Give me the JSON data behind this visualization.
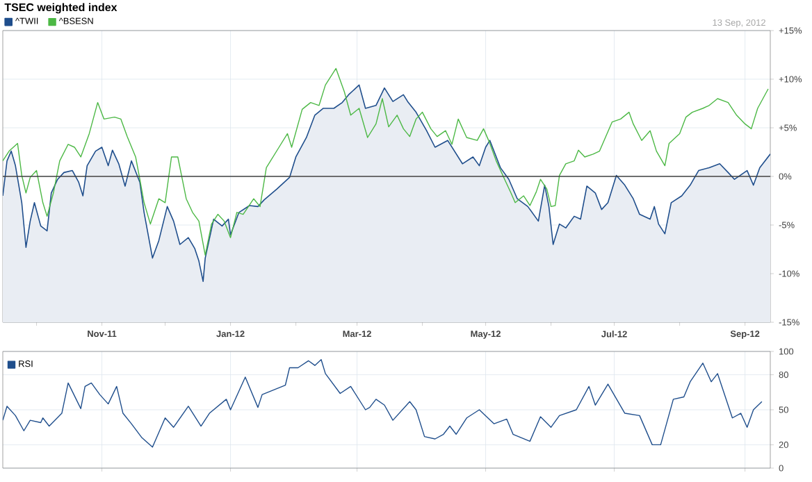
{
  "chart_data": [
    {
      "type": "line",
      "title": "TSEC weighted index",
      "annotations": [
        "13 Sep, 2012"
      ],
      "xlim": [
        "2011-09-15",
        "2012-09-13"
      ],
      "xticks": [
        {
          "value": "2011-10-01",
          "label": null
        },
        {
          "value": "2011-11-01",
          "label": "Nov-11"
        },
        {
          "value": "2011-12-01",
          "label": null
        },
        {
          "value": "2012-01-01",
          "label": "Jan-12"
        },
        {
          "value": "2012-02-01",
          "label": null
        },
        {
          "value": "2012-03-01",
          "label": "Mar-12"
        },
        {
          "value": "2012-04-01",
          "label": null
        },
        {
          "value": "2012-05-01",
          "label": "May-12"
        },
        {
          "value": "2012-06-01",
          "label": null
        },
        {
          "value": "2012-07-01",
          "label": "Jul-12"
        },
        {
          "value": "2012-08-01",
          "label": null
        },
        {
          "value": "2012-09-01",
          "label": "Sep-12"
        }
      ],
      "ylim": [
        -15,
        15
      ],
      "yticks": [
        {
          "value": -15,
          "label": "-15%"
        },
        {
          "value": -10,
          "label": "-10%"
        },
        {
          "value": -5,
          "label": "-5%"
        },
        {
          "value": 0,
          "label": "0%"
        },
        {
          "value": 5,
          "label": "+5%"
        },
        {
          "value": 10,
          "label": "+10%"
        },
        {
          "value": 15,
          "label": "+15%"
        }
      ],
      "grid": true,
      "legend": "top left",
      "ref_lines": [
        {
          "axis": "y",
          "value": 0,
          "color": "#404040"
        }
      ],
      "series": [
        {
          "name": "^TWII",
          "type": "area",
          "color": "#1f4e8c",
          "x": [
            "2011-09-15",
            "2011-09-17",
            "2011-09-19",
            "2011-09-21",
            "2011-09-24",
            "2011-09-26",
            "2011-09-28",
            "2011-09-30",
            "2011-10-03",
            "2011-10-06",
            "2011-10-08",
            "2011-10-11",
            "2011-10-14",
            "2011-10-18",
            "2011-10-21",
            "2011-10-23",
            "2011-10-25",
            "2011-10-29",
            "2011-11-01",
            "2011-11-04",
            "2011-11-06",
            "2011-11-09",
            "2011-11-12",
            "2011-11-15",
            "2011-11-19",
            "2011-11-21",
            "2011-11-25",
            "2011-11-28",
            "2011-12-02",
            "2011-12-05",
            "2011-12-08",
            "2011-12-12",
            "2011-12-15",
            "2011-12-17",
            "2011-12-19",
            "2011-12-20",
            "2011-12-24",
            "2011-12-28",
            "2011-12-31",
            "2012-01-01",
            "2012-01-05",
            "2012-01-10",
            "2012-01-14",
            "2012-01-17",
            "2012-01-23",
            "2012-01-29",
            "2012-02-01",
            "2012-02-06",
            "2012-02-10",
            "2012-02-14",
            "2012-02-19",
            "2012-02-23",
            "2012-02-26",
            "2012-03-02",
            "2012-03-05",
            "2012-03-10",
            "2012-03-14",
            "2012-03-18",
            "2012-03-23",
            "2012-03-25",
            "2012-03-29",
            "2012-04-03",
            "2012-04-07",
            "2012-04-13",
            "2012-04-20",
            "2012-04-25",
            "2012-04-28",
            "2012-05-01",
            "2012-05-03",
            "2012-05-08",
            "2012-05-12",
            "2012-05-16",
            "2012-05-21",
            "2012-05-26",
            "2012-05-29",
            "2012-05-31",
            "2012-06-02",
            "2012-06-05",
            "2012-06-08",
            "2012-06-12",
            "2012-06-15",
            "2012-06-18",
            "2012-06-22",
            "2012-06-25",
            "2012-06-28",
            "2012-07-02",
            "2012-07-06",
            "2012-07-10",
            "2012-07-13",
            "2012-07-18",
            "2012-07-20",
            "2012-07-22",
            "2012-07-25",
            "2012-07-28",
            "2012-08-02",
            "2012-08-06",
            "2012-08-10",
            "2012-08-15",
            "2012-08-20",
            "2012-08-24",
            "2012-08-27",
            "2012-09-02",
            "2012-09-05",
            "2012-09-08",
            "2012-09-13"
          ],
          "values": [
            -2.0,
            1.6,
            2.6,
            1.1,
            -2.7,
            -7.3,
            -4.6,
            -2.7,
            -5.1,
            -5.6,
            -1.7,
            -0.3,
            0.4,
            0.6,
            -0.6,
            -2.0,
            1.1,
            2.6,
            3.0,
            1.1,
            2.7,
            1.3,
            -1.0,
            1.6,
            -0.6,
            -3.7,
            -8.4,
            -6.6,
            -3.1,
            -4.6,
            -7.0,
            -6.3,
            -7.4,
            -8.7,
            -10.8,
            -8.4,
            -4.4,
            -5.1,
            -4.4,
            -6.0,
            -3.7,
            -3.0,
            -3.1,
            -2.4,
            -1.3,
            -0.1,
            2.0,
            4.0,
            6.3,
            7.0,
            7.0,
            7.6,
            8.4,
            9.4,
            7.0,
            7.3,
            9.1,
            7.7,
            8.4,
            7.7,
            6.6,
            4.7,
            3.0,
            3.7,
            1.3,
            2.0,
            1.1,
            3.0,
            3.7,
            0.9,
            -0.3,
            -2.3,
            -3.1,
            -4.6,
            -0.9,
            -3.1,
            -7.0,
            -4.9,
            -5.3,
            -4.1,
            -4.4,
            -1.0,
            -1.7,
            -3.4,
            -2.7,
            0.1,
            -0.9,
            -2.3,
            -3.9,
            -4.4,
            -3.1,
            -4.9,
            -5.9,
            -2.7,
            -2.0,
            -0.9,
            0.6,
            0.9,
            1.3,
            0.4,
            -0.3,
            0.6,
            -0.9,
            0.9,
            2.3
          ]
        },
        {
          "name": "^BSESN",
          "color": "#4cb845",
          "x": [
            "2011-09-15",
            "2011-09-18",
            "2011-09-22",
            "2011-09-24",
            "2011-09-26",
            "2011-09-28",
            "2011-10-01",
            "2011-10-04",
            "2011-10-06",
            "2011-10-09",
            "2011-10-12",
            "2011-10-16",
            "2011-10-19",
            "2011-10-22",
            "2011-10-26",
            "2011-10-30",
            "2011-11-02",
            "2011-11-07",
            "2011-11-10",
            "2011-11-13",
            "2011-11-17",
            "2011-11-19",
            "2011-11-21",
            "2011-11-24",
            "2011-11-28",
            "2011-12-01",
            "2011-12-04",
            "2011-12-07",
            "2011-12-11",
            "2011-12-14",
            "2011-12-17",
            "2011-12-20",
            "2011-12-23",
            "2011-12-26",
            "2011-12-29",
            "2012-01-01",
            "2012-01-04",
            "2012-01-07",
            "2012-01-12",
            "2012-01-15",
            "2012-01-18",
            "2012-01-24",
            "2012-01-28",
            "2012-01-30",
            "2012-02-04",
            "2012-02-08",
            "2012-02-12",
            "2012-02-15",
            "2012-02-20",
            "2012-02-24",
            "2012-02-27",
            "2012-03-02",
            "2012-03-06",
            "2012-03-10",
            "2012-03-13",
            "2012-03-16",
            "2012-03-20",
            "2012-03-23",
            "2012-03-26",
            "2012-03-29",
            "2012-04-01",
            "2012-04-05",
            "2012-04-08",
            "2012-04-12",
            "2012-04-15",
            "2012-04-18",
            "2012-04-22",
            "2012-04-27",
            "2012-04-30",
            "2012-05-03",
            "2012-05-06",
            "2012-05-10",
            "2012-05-13",
            "2012-05-15",
            "2012-05-19",
            "2012-05-22",
            "2012-05-25",
            "2012-05-27",
            "2012-05-30",
            "2012-06-01",
            "2012-06-03",
            "2012-06-05",
            "2012-06-08",
            "2012-06-12",
            "2012-06-14",
            "2012-06-17",
            "2012-06-21",
            "2012-06-24",
            "2012-06-27",
            "2012-06-30",
            "2012-07-04",
            "2012-07-08",
            "2012-07-10",
            "2012-07-14",
            "2012-07-18",
            "2012-07-21",
            "2012-07-25",
            "2012-07-27",
            "2012-08-01",
            "2012-08-04",
            "2012-08-07",
            "2012-08-12",
            "2012-08-15",
            "2012-08-19",
            "2012-08-24",
            "2012-08-28",
            "2012-09-01",
            "2012-09-04",
            "2012-09-07",
            "2012-09-12"
          ],
          "values": [
            1.6,
            2.6,
            3.4,
            0.1,
            -1.7,
            -0.1,
            0.6,
            -2.7,
            -4.1,
            -1.7,
            1.6,
            3.3,
            3.0,
            2.0,
            4.4,
            7.6,
            5.9,
            6.1,
            5.9,
            4.1,
            2.0,
            -0.3,
            -2.7,
            -4.9,
            -2.3,
            -2.7,
            2.0,
            2.0,
            -2.3,
            -3.7,
            -4.6,
            -8.1,
            -4.9,
            -3.9,
            -4.6,
            -6.3,
            -3.7,
            -3.9,
            -2.3,
            -3.1,
            0.9,
            3.0,
            4.4,
            3.0,
            6.9,
            7.6,
            7.3,
            9.4,
            11.1,
            8.7,
            6.3,
            7.0,
            4.0,
            5.4,
            8.0,
            5.1,
            6.3,
            4.9,
            4.1,
            5.9,
            6.6,
            4.9,
            4.1,
            4.7,
            3.3,
            5.9,
            4.0,
            3.7,
            4.9,
            3.4,
            1.6,
            -0.3,
            -1.7,
            -2.7,
            -2.0,
            -3.0,
            -1.6,
            -0.3,
            -1.3,
            -3.1,
            -3.0,
            0.1,
            1.3,
            1.6,
            2.7,
            2.0,
            2.3,
            2.6,
            4.1,
            5.6,
            5.9,
            6.6,
            5.4,
            3.7,
            4.7,
            2.6,
            1.1,
            3.4,
            4.4,
            6.1,
            6.6,
            7.0,
            7.3,
            8.0,
            7.6,
            6.3,
            5.4,
            4.9,
            7.0,
            9.0
          ]
        }
      ]
    },
    {
      "type": "line",
      "xlim": [
        "2011-09-15",
        "2012-09-13"
      ],
      "xticks": [
        {
          "value": "2011-11-01",
          "label": null
        },
        {
          "value": "2012-01-01",
          "label": null
        },
        {
          "value": "2012-03-01",
          "label": null
        },
        {
          "value": "2012-05-01",
          "label": null
        },
        {
          "value": "2012-07-01",
          "label": null
        },
        {
          "value": "2012-09-01",
          "label": null
        }
      ],
      "tick_labels": "y",
      "ylim": [
        0,
        100
      ],
      "yticks": [
        0,
        20,
        50,
        80,
        100
      ],
      "grid": true,
      "legend": "top left",
      "series": [
        {
          "name": "RSI",
          "color": "#1f4e8c",
          "x": [
            "2011-09-15",
            "2011-09-17",
            "2011-09-21",
            "2011-09-25",
            "2011-09-28",
            "2011-10-03",
            "2011-10-04",
            "2011-10-07",
            "2011-10-13",
            "2011-10-16",
            "2011-10-22",
            "2011-10-24",
            "2011-10-27",
            "2011-10-31",
            "2011-11-04",
            "2011-11-08",
            "2011-11-11",
            "2011-11-15",
            "2011-11-20",
            "2011-11-25",
            "2011-12-01",
            "2011-12-05",
            "2011-12-12",
            "2011-12-18",
            "2011-12-22",
            "2011-12-30",
            "2012-01-01",
            "2012-01-08",
            "2012-01-14",
            "2012-01-16",
            "2012-01-27",
            "2012-01-29",
            "2012-02-02",
            "2012-02-07",
            "2012-02-10",
            "2012-02-13",
            "2012-02-15",
            "2012-02-22",
            "2012-02-27",
            "2012-03-05",
            "2012-03-07",
            "2012-03-10",
            "2012-03-14",
            "2012-03-18",
            "2012-03-26",
            "2012-03-29",
            "2012-04-02",
            "2012-04-07",
            "2012-04-11",
            "2012-04-14",
            "2012-04-17",
            "2012-04-22",
            "2012-04-28",
            "2012-05-05",
            "2012-05-11",
            "2012-05-14",
            "2012-05-22",
            "2012-05-27",
            "2012-06-01",
            "2012-06-05",
            "2012-06-13",
            "2012-06-19",
            "2012-06-22",
            "2012-06-28",
            "2012-07-06",
            "2012-07-13",
            "2012-07-19",
            "2012-07-23",
            "2012-07-29",
            "2012-08-03",
            "2012-08-06",
            "2012-08-12",
            "2012-08-16",
            "2012-08-19",
            "2012-08-26",
            "2012-08-30",
            "2012-09-02",
            "2012-09-05",
            "2012-09-09"
          ],
          "values": [
            41,
            53,
            45,
            32,
            41,
            39,
            43,
            36,
            47,
            73,
            51,
            70,
            73,
            63,
            55,
            70,
            47,
            38,
            26,
            18,
            43,
            35,
            53,
            36,
            47,
            59,
            50,
            78,
            52,
            63,
            71,
            86,
            86,
            92,
            88,
            93,
            81,
            64,
            70,
            50,
            52,
            59,
            54,
            41,
            57,
            50,
            27,
            25,
            29,
            36,
            29,
            43,
            50,
            38,
            42,
            29,
            23,
            44,
            35,
            45,
            50,
            70,
            54,
            72,
            47,
            45,
            20,
            20,
            59,
            61,
            74,
            90,
            74,
            81,
            43,
            47,
            35,
            50,
            57
          ]
        }
      ]
    }
  ]
}
